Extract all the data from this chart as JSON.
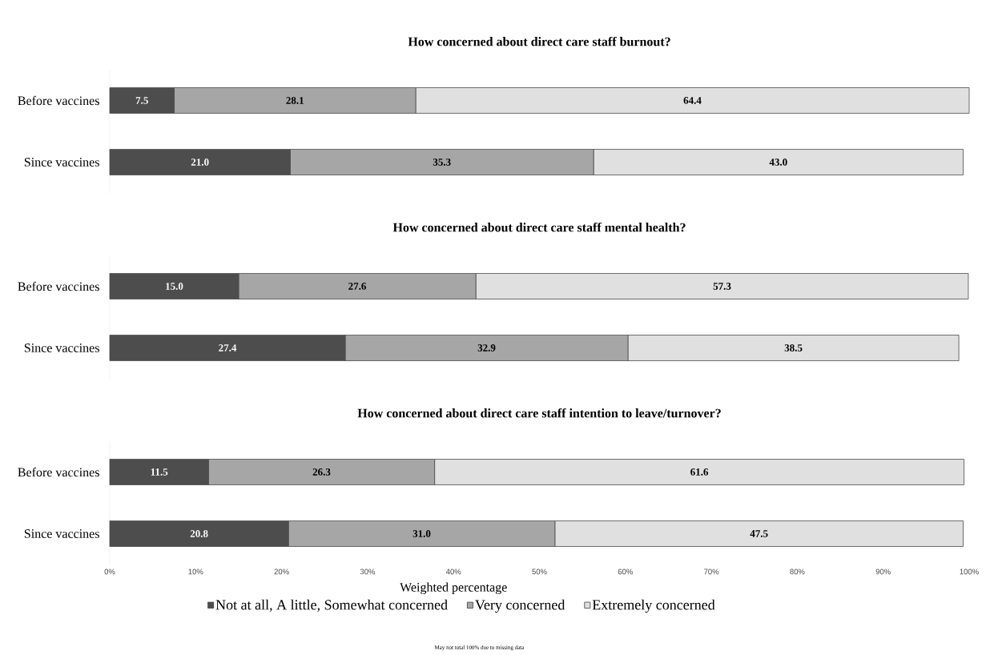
{
  "chart_data": [
    {
      "type": "bar",
      "orientation": "horizontal",
      "stacked": true,
      "tick_labels": "y",
      "title": "How concerned about direct care staff burnout?",
      "categories": [
        "Before vaccines",
        "Since vaccines"
      ],
      "xlim": [
        0,
        100
      ],
      "series": [
        {
          "color": "#4d4d4d",
          "values": [
            7.5,
            21.0
          ],
          "value_labels": [
            "7.5",
            "21.0"
          ]
        },
        {
          "color": "#a6a6a6",
          "values": [
            28.1,
            35.3
          ],
          "value_labels": [
            "28.1",
            "35.3"
          ]
        },
        {
          "color": "#e0e0e0",
          "values": [
            64.4,
            43.0
          ],
          "value_labels": [
            "64.4",
            "43.0"
          ]
        }
      ]
    },
    {
      "type": "bar",
      "orientation": "horizontal",
      "stacked": true,
      "tick_labels": "y",
      "title": "How concerned about direct care staff mental health?",
      "categories": [
        "Before vaccines",
        "Since vaccines"
      ],
      "xlim": [
        0,
        100
      ],
      "series": [
        {
          "color": "#4d4d4d",
          "values": [
            15.0,
            27.4
          ],
          "value_labels": [
            "15.0",
            "27.4"
          ]
        },
        {
          "color": "#a6a6a6",
          "values": [
            27.6,
            32.9
          ],
          "value_labels": [
            "27.6",
            "32.9"
          ]
        },
        {
          "color": "#e0e0e0",
          "values": [
            57.3,
            38.5
          ],
          "value_labels": [
            "57.3",
            "38.5"
          ]
        }
      ]
    },
    {
      "type": "bar",
      "orientation": "horizontal",
      "stacked": true,
      "legend": "bottom",
      "title": "How concerned about direct care staff intention to leave/turnover?",
      "xlabel": "Weighted percentage",
      "annotations": [
        "May not total 100% due to missing data"
      ],
      "categories": [
        "Before vaccines",
        "Since vaccines"
      ],
      "xlim": [
        0,
        100
      ],
      "xticks": [
        {
          "value": 0,
          "label": "0%"
        },
        {
          "value": 10,
          "label": "10%"
        },
        {
          "value": 20,
          "label": "20%"
        },
        {
          "value": 30,
          "label": "30%"
        },
        {
          "value": 40,
          "label": "40%"
        },
        {
          "value": 50,
          "label": "50%"
        },
        {
          "value": 60,
          "label": "60%"
        },
        {
          "value": 70,
          "label": "70%"
        },
        {
          "value": 80,
          "label": "80%"
        },
        {
          "value": 90,
          "label": "90%"
        },
        {
          "value": 100,
          "label": "100%"
        }
      ],
      "series": [
        {
          "name": "Not at all, A little, Somewhat concerned",
          "color": "#4d4d4d",
          "values": [
            11.5,
            20.8
          ],
          "value_labels": [
            "11.5",
            "20.8"
          ]
        },
        {
          "name": "Very concerned",
          "color": "#a6a6a6",
          "values": [
            26.3,
            31.0
          ],
          "value_labels": [
            "26.3",
            "31.0"
          ]
        },
        {
          "name": "Extremely concerned",
          "color": "#e0e0e0",
          "values": [
            61.6,
            47.5
          ],
          "value_labels": [
            "61.6",
            "47.5"
          ]
        }
      ]
    }
  ]
}
